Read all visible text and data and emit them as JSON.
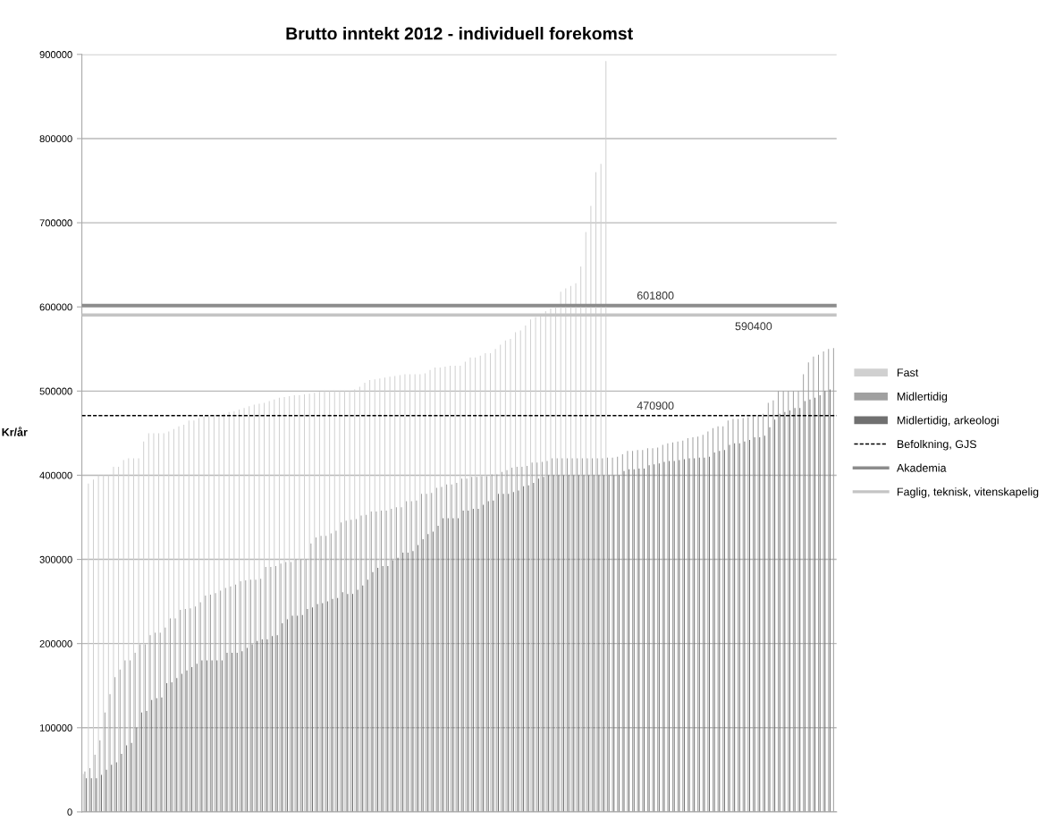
{
  "chart_data": {
    "type": "bar",
    "title": "Brutto inntekt 2012 - individuell forekomst",
    "ylabel": "Kr/år",
    "categories": [
      null,
      null,
      null,
      null,
      null,
      null,
      null,
      null,
      null,
      null,
      null,
      null,
      null,
      null,
      null,
      null,
      null,
      null,
      null,
      null,
      null,
      null,
      null,
      null,
      null,
      null,
      null,
      null,
      null,
      null,
      null,
      null,
      null,
      null,
      null,
      null,
      null,
      null,
      null,
      null,
      null,
      null,
      null,
      null,
      null,
      null,
      null,
      null,
      null,
      null,
      null,
      null,
      null,
      null,
      null,
      null,
      null,
      null,
      null,
      null,
      null,
      null,
      null,
      null,
      null,
      null,
      null,
      null,
      null,
      null,
      null,
      null,
      null,
      null,
      null,
      null,
      null,
      null,
      null,
      null,
      null,
      null,
      null,
      null,
      null,
      null,
      null,
      null,
      null,
      null,
      null,
      null,
      null,
      null,
      null,
      null,
      null,
      null,
      null,
      null,
      null,
      null,
      null,
      null,
      null,
      null,
      null,
      null,
      null,
      null,
      null,
      null,
      null,
      null,
      null,
      null,
      null,
      null,
      null,
      null,
      null,
      null,
      null,
      null,
      null,
      null,
      null,
      null,
      null,
      null,
      null,
      null,
      null,
      null,
      null,
      null,
      null,
      null,
      null,
      null,
      null,
      null,
      null,
      null,
      null,
      null,
      null,
      null,
      null,
      null
    ],
    "series": [
      {
        "name": "Fast",
        "color": "#d0d0d0",
        "values": [
          45000,
          390000,
          395000,
          400000,
          400000,
          400000,
          410000,
          410000,
          418000,
          420000,
          420000,
          420000,
          440000,
          450000,
          450000,
          450000,
          450000,
          452000,
          455000,
          458000,
          460000,
          465000,
          465000,
          468000,
          470000,
          470000,
          470000,
          472000,
          473000,
          475000,
          476000,
          478000,
          480000,
          482000,
          484000,
          485000,
          486000,
          488000,
          490000,
          492000,
          493000,
          494000,
          495000,
          495000,
          496000,
          497000,
          498000,
          499000,
          500000,
          500000,
          500000,
          500000,
          500000,
          500000,
          502000,
          505000,
          510000,
          513000,
          514000,
          515000,
          516000,
          517000,
          518000,
          519000,
          520000,
          520000,
          520000,
          520000,
          521000,
          525000,
          528000,
          528000,
          529000,
          530000,
          530000,
          530000,
          535000,
          540000,
          540000,
          542000,
          545000,
          545000,
          550000,
          555000,
          560000,
          562000,
          570000,
          572000,
          578000,
          585000,
          588000,
          590000,
          595000,
          598000,
          600000,
          618000,
          622000,
          625000,
          628000,
          648000,
          689000,
          720000,
          760000,
          770000,
          892000,
          null,
          null,
          null,
          null,
          null,
          null,
          null,
          null,
          null,
          null,
          null,
          null,
          null,
          null,
          null,
          null,
          null,
          null,
          null,
          null,
          null,
          null,
          null,
          null,
          null,
          null,
          null,
          null,
          null,
          null,
          null,
          null,
          null,
          null,
          null,
          null,
          null,
          null,
          null,
          null,
          null,
          null,
          null,
          null,
          null
        ]
      },
      {
        "name": "Midlertidig",
        "color": "#a0a0a0",
        "values": [
          48000,
          52000,
          68000,
          85000,
          118000,
          140000,
          160000,
          169000,
          180000,
          180000,
          189000,
          199000,
          199000,
          210000,
          213000,
          213000,
          219000,
          230000,
          230000,
          240000,
          241000,
          242000,
          244000,
          249000,
          257000,
          258000,
          260000,
          263000,
          266000,
          268000,
          270000,
          274000,
          275000,
          276000,
          276000,
          277000,
          291000,
          291000,
          292000,
          295000,
          297000,
          297000,
          300000,
          300000,
          300000,
          319000,
          326000,
          328000,
          328000,
          331000,
          334000,
          344000,
          346000,
          347000,
          348000,
          352000,
          353000,
          357000,
          357000,
          358000,
          358000,
          360000,
          362000,
          362000,
          369000,
          369000,
          370000,
          378000,
          378000,
          379000,
          385000,
          386000,
          389000,
          389000,
          391000,
          396000,
          396000,
          398000,
          398000,
          399000,
          399000,
          401000,
          401000,
          404000,
          406000,
          409000,
          410000,
          410000,
          411000,
          415000,
          415000,
          416000,
          417000,
          420000,
          420000,
          420000,
          420000,
          420000,
          420000,
          420000,
          420000,
          420000,
          420000,
          420000,
          421000,
          421000,
          422000,
          425000,
          429000,
          429000,
          430000,
          430000,
          432000,
          432000,
          433000,
          436000,
          438000,
          439000,
          440000,
          441000,
          444000,
          445000,
          446000,
          448000,
          452000,
          456000,
          458000,
          458000,
          465000,
          467000,
          467000,
          468000,
          469000,
          470000,
          471000,
          473000,
          486000,
          489000,
          500000,
          500000,
          500000,
          500000,
          500000,
          520000,
          534000,
          541000,
          543000,
          547000,
          550000,
          551000
        ]
      },
      {
        "name": "Midlertidig, arkeologi",
        "color": "#707070",
        "values": [
          40000,
          40000,
          40000,
          44000,
          50000,
          56000,
          59000,
          69000,
          79000,
          82000,
          100000,
          118000,
          120000,
          133000,
          135000,
          136000,
          153000,
          154000,
          159000,
          164000,
          168000,
          172000,
          176000,
          180000,
          180000,
          180000,
          180000,
          180000,
          189000,
          189000,
          189000,
          191000,
          195000,
          199000,
          203000,
          205000,
          205000,
          209000,
          210000,
          224000,
          229000,
          233000,
          233000,
          234000,
          241000,
          243000,
          247000,
          248000,
          250000,
          253000,
          254000,
          261000,
          259000,
          259000,
          264000,
          269000,
          276000,
          285000,
          290000,
          292000,
          292000,
          299000,
          302000,
          308000,
          308000,
          310000,
          317000,
          324000,
          330000,
          333000,
          340000,
          349000,
          349000,
          349000,
          349000,
          358000,
          358000,
          360000,
          360000,
          365000,
          369000,
          370000,
          378000,
          378000,
          378000,
          380000,
          382000,
          387000,
          388000,
          391000,
          396000,
          398000,
          400000,
          400000,
          400000,
          400000,
          400000,
          400000,
          400000,
          400000,
          400000,
          400000,
          400000,
          400000,
          400000,
          400000,
          400000,
          405000,
          407000,
          407000,
          408000,
          408000,
          412000,
          413000,
          414000,
          416000,
          417000,
          417000,
          418000,
          419000,
          420000,
          420000,
          421000,
          421000,
          422000,
          427000,
          429000,
          430000,
          436000,
          438000,
          438000,
          440000,
          442000,
          445000,
          445000,
          447000,
          457000,
          466000,
          473000,
          475000,
          477000,
          480000,
          480000,
          488000,
          490000,
          492000,
          495000,
          500000,
          502000,
          null
        ]
      }
    ],
    "ylim": [
      0,
      900000
    ],
    "yticks": [
      0,
      100000,
      200000,
      300000,
      400000,
      500000,
      600000,
      700000,
      800000,
      900000
    ],
    "grid": "y",
    "legend": "right",
    "ref_lines": [
      {
        "axis": "y",
        "value": 470900,
        "label": "Befolkning, GJS",
        "color": "#000000",
        "line_style": "dashed"
      },
      {
        "axis": "y",
        "value": 601800,
        "label": "Akademia",
        "color": "#8c8c8c",
        "line_style": "solid"
      },
      {
        "axis": "y",
        "value": 590400,
        "label": "Faglig, teknisk, vitenskapelig",
        "color": "#c4c4c4",
        "line_style": "solid"
      }
    ],
    "annotations": [
      {
        "text": "470900",
        "y": 470900
      },
      {
        "text": "601800",
        "y": 601800
      },
      {
        "text": "590400",
        "y": 590400
      }
    ]
  }
}
